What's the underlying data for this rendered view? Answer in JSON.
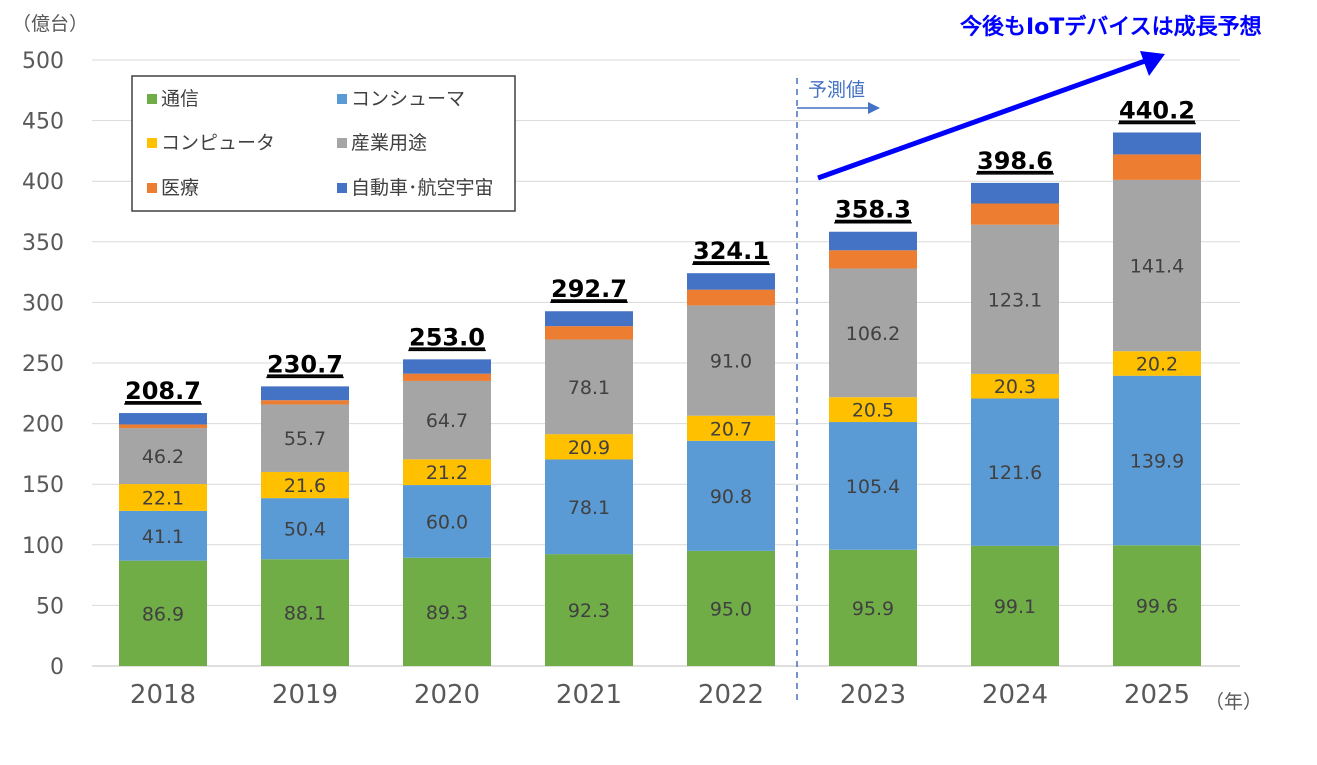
{
  "chart_data": {
    "type": "bar",
    "stacked": true,
    "ylabel": "（億台）",
    "xlabel": "（年）",
    "ylim": [
      0,
      500
    ],
    "yticks": [
      0,
      50,
      100,
      150,
      200,
      250,
      300,
      350,
      400,
      450,
      500
    ],
    "grid": true,
    "legend_position": "top-left",
    "categories": [
      "2018",
      "2019",
      "2020",
      "2021",
      "2022",
      "2023",
      "2024",
      "2025"
    ],
    "series": [
      {
        "name": "通信",
        "color": "#70AD47",
        "values": [
          86.9,
          88.1,
          89.3,
          92.3,
          95.0,
          95.9,
          99.1,
          99.6
        ],
        "labels": [
          "86.9",
          "88.1",
          "89.3",
          "92.3",
          "95.0",
          "95.9",
          "99.1",
          "99.6"
        ]
      },
      {
        "name": "コンシューマ",
        "color": "#5B9BD5",
        "values": [
          41.1,
          50.4,
          60.0,
          78.1,
          90.8,
          105.4,
          121.6,
          139.9
        ],
        "labels": [
          "41.1",
          "50.4",
          "60.0",
          "78.1",
          "90.8",
          "105.4",
          "121.6",
          "139.9"
        ]
      },
      {
        "name": "コンピュータ",
        "color": "#FFC000",
        "values": [
          22.1,
          21.6,
          21.2,
          20.9,
          20.7,
          20.5,
          20.3,
          20.2
        ],
        "labels": [
          "22.1",
          "21.6",
          "21.2",
          "20.9",
          "20.7",
          "20.5",
          "20.3",
          "20.2"
        ]
      },
      {
        "name": "産業用途",
        "color": "#A5A5A5",
        "values": [
          46.2,
          55.7,
          64.7,
          78.1,
          91.0,
          106.2,
          123.1,
          141.4
        ],
        "labels": [
          "46.2",
          "55.7",
          "64.7",
          "78.1",
          "91.0",
          "106.2",
          "123.1",
          "141.4"
        ]
      },
      {
        "name": "医療",
        "color": "#ED7D31",
        "values": [
          3.0,
          3.5,
          6.0,
          11.0,
          13.0,
          15.0,
          17.5,
          21.0
        ],
        "labels": [
          "",
          "",
          "",
          "",
          "",
          "",
          "",
          ""
        ]
      },
      {
        "name": "自動車･航空宇宙",
        "color": "#4472C4",
        "values": [
          9.4,
          11.4,
          11.8,
          12.3,
          13.6,
          15.3,
          17.0,
          18.1
        ],
        "labels": [
          "",
          "",
          "",
          "",
          "",
          "",
          "",
          ""
        ]
      }
    ],
    "totals": [
      "208.7",
      "230.7",
      "253.0",
      "292.7",
      "324.1",
      "358.3",
      "398.6",
      "440.2"
    ],
    "annotations": {
      "forecast_label": "予測値",
      "trend_label": "今後もIoTデバイスは成長予想"
    }
  }
}
